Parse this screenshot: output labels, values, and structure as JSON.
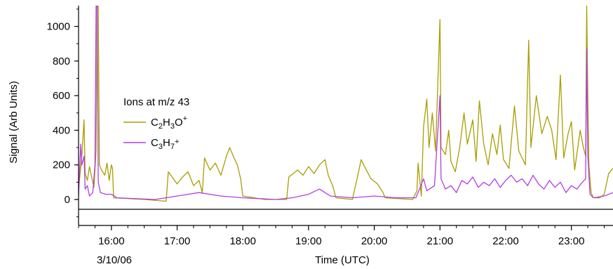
{
  "chart_data": {
    "type": "line",
    "xlabel": "Time (UTC)",
    "ylabel": "Signal (Arb Units)",
    "date_label": "3/10/06",
    "legend_title": "Ions at m/z 43",
    "xlim": [
      "15:30",
      "23:38"
    ],
    "ylim": [
      -150,
      1120
    ],
    "x_ticks": [
      "16:00",
      "17:00",
      "18:00",
      "19:00",
      "20:00",
      "21:00",
      "22:00",
      "23:00"
    ],
    "y_ticks": [
      0,
      200,
      400,
      600,
      800,
      1000
    ],
    "zero_line": true,
    "grid": false,
    "legend_position": "center-left",
    "series": [
      {
        "name": "C2H3O+",
        "label_parts": {
          "a": "C",
          "a_sub": "2",
          "b": "H",
          "b_sub": "3",
          "c": "O",
          "sup": "+"
        },
        "color": "#a89e00",
        "points": [
          [
            "15:30",
            60
          ],
          [
            "15:33",
            250
          ],
          [
            "15:35",
            460
          ],
          [
            "15:36",
            150
          ],
          [
            "15:38",
            110
          ],
          [
            "15:40",
            190
          ],
          [
            "15:42",
            130
          ],
          [
            "15:44",
            70
          ],
          [
            "15:46",
            280
          ],
          [
            "15:47",
            1120
          ],
          [
            "15:48",
            1120
          ],
          [
            "15:49",
            200
          ],
          [
            "15:51",
            170
          ],
          [
            "15:54",
            140
          ],
          [
            "15:56",
            210
          ],
          [
            "15:58",
            110
          ],
          [
            "16:00",
            200
          ],
          [
            "16:01",
            180
          ],
          [
            "16:02",
            10
          ],
          [
            "16:30",
            0
          ],
          [
            "16:50",
            -10
          ],
          [
            "16:52",
            160
          ],
          [
            "17:00",
            90
          ],
          [
            "17:05",
            130
          ],
          [
            "17:10",
            160
          ],
          [
            "17:15",
            80
          ],
          [
            "17:20",
            110
          ],
          [
            "17:23",
            40
          ],
          [
            "17:25",
            240
          ],
          [
            "17:30",
            170
          ],
          [
            "17:35",
            210
          ],
          [
            "17:40",
            140
          ],
          [
            "17:45",
            250
          ],
          [
            "17:48",
            300
          ],
          [
            "17:52",
            240
          ],
          [
            "17:55",
            200
          ],
          [
            "17:58",
            120
          ],
          [
            "18:00",
            20
          ],
          [
            "18:20",
            0
          ],
          [
            "18:40",
            0
          ],
          [
            "18:42",
            130
          ],
          [
            "18:50",
            170
          ],
          [
            "18:55",
            140
          ],
          [
            "19:00",
            190
          ],
          [
            "19:05",
            150
          ],
          [
            "19:10",
            200
          ],
          [
            "19:15",
            230
          ],
          [
            "19:18",
            140
          ],
          [
            "19:22",
            80
          ],
          [
            "19:25",
            10
          ],
          [
            "19:40",
            0
          ],
          [
            "19:45",
            140
          ],
          [
            "19:48",
            230
          ],
          [
            "19:52",
            180
          ],
          [
            "19:57",
            120
          ],
          [
            "20:03",
            90
          ],
          [
            "20:08",
            40
          ],
          [
            "20:10",
            10
          ],
          [
            "20:35",
            0
          ],
          [
            "20:39",
            50
          ],
          [
            "20:40",
            210
          ],
          [
            "20:43",
            20
          ],
          [
            "20:45",
            420
          ],
          [
            "20:48",
            580
          ],
          [
            "20:50",
            300
          ],
          [
            "20:53",
            500
          ],
          [
            "20:56",
            280
          ],
          [
            "21:00",
            1040
          ],
          [
            "21:01",
            300
          ],
          [
            "21:05",
            260
          ],
          [
            "21:08",
            400
          ],
          [
            "21:10",
            220
          ],
          [
            "21:14",
            160
          ],
          [
            "21:18",
            300
          ],
          [
            "21:22",
            500
          ],
          [
            "21:25",
            320
          ],
          [
            "21:30",
            460
          ],
          [
            "21:33",
            220
          ],
          [
            "21:36",
            570
          ],
          [
            "21:40",
            320
          ],
          [
            "21:44",
            200
          ],
          [
            "21:48",
            380
          ],
          [
            "21:52",
            260
          ],
          [
            "21:55",
            430
          ],
          [
            "21:58",
            230
          ],
          [
            "22:03",
            180
          ],
          [
            "22:08",
            540
          ],
          [
            "22:12",
            280
          ],
          [
            "22:18",
            200
          ],
          [
            "22:21",
            920
          ],
          [
            "22:23",
            300
          ],
          [
            "22:28",
            600
          ],
          [
            "22:33",
            380
          ],
          [
            "22:38",
            480
          ],
          [
            "22:42",
            400
          ],
          [
            "22:46",
            230
          ],
          [
            "22:50",
            720
          ],
          [
            "22:53",
            240
          ],
          [
            "22:57",
            380
          ],
          [
            "23:00",
            450
          ],
          [
            "23:03",
            170
          ],
          [
            "23:08",
            400
          ],
          [
            "23:11",
            300
          ],
          [
            "23:13",
            250
          ],
          [
            "23:14",
            1120
          ],
          [
            "23:15",
            600
          ],
          [
            "23:16",
            200
          ],
          [
            "23:18",
            40
          ],
          [
            "23:20",
            10
          ],
          [
            "23:26",
            10
          ],
          [
            "23:30",
            30
          ],
          [
            "23:34",
            150
          ],
          [
            "23:38",
            180
          ]
        ]
      },
      {
        "name": "C3H7+",
        "label_parts": {
          "a": "C",
          "a_sub": "3",
          "b": "H",
          "b_sub": "7",
          "sup": "+"
        },
        "color": "#b23fe0",
        "points": [
          [
            "15:30",
            20
          ],
          [
            "15:32",
            320
          ],
          [
            "15:33",
            200
          ],
          [
            "15:35",
            250
          ],
          [
            "15:36",
            60
          ],
          [
            "15:38",
            80
          ],
          [
            "15:40",
            20
          ],
          [
            "15:43",
            40
          ],
          [
            "15:45",
            200
          ],
          [
            "15:46",
            1120
          ],
          [
            "15:47",
            1120
          ],
          [
            "15:48",
            100
          ],
          [
            "15:50",
            40
          ],
          [
            "15:55",
            30
          ],
          [
            "16:00",
            30
          ],
          [
            "16:05",
            10
          ],
          [
            "16:40",
            0
          ],
          [
            "17:00",
            20
          ],
          [
            "17:20",
            40
          ],
          [
            "17:40",
            20
          ],
          [
            "18:00",
            10
          ],
          [
            "18:30",
            0
          ],
          [
            "18:45",
            10
          ],
          [
            "19:00",
            30
          ],
          [
            "19:10",
            60
          ],
          [
            "19:20",
            20
          ],
          [
            "19:40",
            10
          ],
          [
            "20:00",
            20
          ],
          [
            "20:20",
            10
          ],
          [
            "20:38",
            10
          ],
          [
            "20:40",
            40
          ],
          [
            "20:45",
            120
          ],
          [
            "20:48",
            50
          ],
          [
            "20:55",
            80
          ],
          [
            "21:00",
            600
          ],
          [
            "21:01",
            120
          ],
          [
            "21:05",
            60
          ],
          [
            "21:10",
            80
          ],
          [
            "21:15",
            40
          ],
          [
            "21:20",
            110
          ],
          [
            "21:25",
            90
          ],
          [
            "21:30",
            130
          ],
          [
            "21:35",
            70
          ],
          [
            "21:40",
            100
          ],
          [
            "21:45",
            80
          ],
          [
            "21:50",
            120
          ],
          [
            "21:55",
            70
          ],
          [
            "22:00",
            110
          ],
          [
            "22:05",
            140
          ],
          [
            "22:10",
            100
          ],
          [
            "22:15",
            120
          ],
          [
            "22:20",
            80
          ],
          [
            "22:25",
            140
          ],
          [
            "22:30",
            90
          ],
          [
            "22:35",
            60
          ],
          [
            "22:40",
            110
          ],
          [
            "22:45",
            70
          ],
          [
            "22:50",
            100
          ],
          [
            "22:55",
            40
          ],
          [
            "23:00",
            80
          ],
          [
            "23:05",
            60
          ],
          [
            "23:10",
            100
          ],
          [
            "23:13",
            120
          ],
          [
            "23:14",
            870
          ],
          [
            "23:15",
            250
          ],
          [
            "23:17",
            30
          ],
          [
            "23:20",
            10
          ],
          [
            "23:30",
            20
          ],
          [
            "23:38",
            40
          ]
        ]
      }
    ]
  }
}
